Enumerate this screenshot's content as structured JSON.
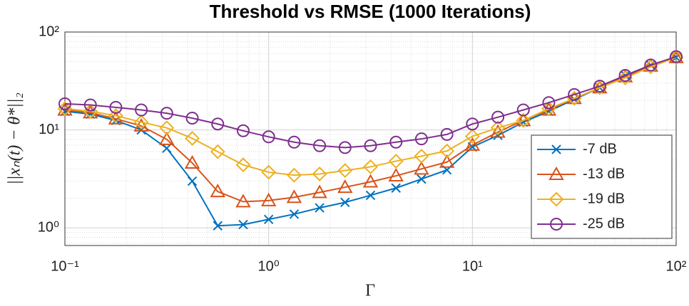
{
  "chart_data": {
    "type": "line",
    "title": "Threshold vs RMSE (1000 Iterations)",
    "xlabel": "Γ",
    "ylabel": "||xₙ(t) − θ*||₂",
    "x": [
      0.1,
      0.1334,
      0.1778,
      0.2371,
      0.3162,
      0.4217,
      0.5623,
      0.7499,
      1,
      1.334,
      1.778,
      2.371,
      3.162,
      4.217,
      5.623,
      7.499,
      10,
      13.34,
      17.78,
      23.71,
      31.62,
      42.17,
      56.23,
      74.99,
      100
    ],
    "series": [
      {
        "name": "-7 dB",
        "color": "#0072bd",
        "marker": "x",
        "values": [
          15.5,
          14.5,
          12.5,
          10,
          6.5,
          3.0,
          1.05,
          1.08,
          1.22,
          1.38,
          1.6,
          1.82,
          2.15,
          2.55,
          3.15,
          3.9,
          6.7,
          8.8,
          12,
          15.5,
          20.5,
          27,
          36,
          46,
          55
        ]
      },
      {
        "name": "-13 dB",
        "color": "#d95319",
        "marker": "triangle",
        "values": [
          16,
          15,
          13,
          11,
          8,
          4.6,
          2.35,
          1.85,
          1.9,
          2.05,
          2.3,
          2.6,
          2.95,
          3.4,
          4.0,
          4.7,
          7.0,
          9.5,
          12.5,
          16,
          21,
          27,
          35,
          45,
          55
        ]
      },
      {
        "name": "-19 dB",
        "color": "#edb120",
        "marker": "diamond",
        "values": [
          16.5,
          15.5,
          14,
          12,
          10.5,
          8.2,
          6,
          4.4,
          3.7,
          3.45,
          3.55,
          3.85,
          4.2,
          4.8,
          5.4,
          6.1,
          8.6,
          10.5,
          12.5,
          16.5,
          21,
          27,
          34,
          44,
          55
        ]
      },
      {
        "name": "-25 dB",
        "color": "#7e2f8e",
        "marker": "circle",
        "values": [
          18.5,
          18,
          17,
          16,
          14.8,
          13.2,
          11.5,
          9.8,
          8.5,
          7.5,
          6.9,
          6.6,
          6.9,
          7.5,
          8.1,
          9,
          11.5,
          13.5,
          16,
          19,
          23,
          28,
          36,
          46,
          56
        ]
      }
    ],
    "xlim": [
      0.1,
      100
    ],
    "ylim": [
      0.66,
      100
    ],
    "xlog": true,
    "ylog": true,
    "xticks": [
      {
        "value": 0.1,
        "label": "10⁻¹"
      },
      {
        "value": 1,
        "label": "10⁰"
      },
      {
        "value": 10,
        "label": "10¹"
      },
      {
        "value": 100,
        "label": "10²"
      }
    ],
    "yticks": [
      {
        "value": 1,
        "label": "10⁰"
      },
      {
        "value": 10,
        "label": "10¹"
      },
      {
        "value": 100,
        "label": "10²"
      }
    ],
    "grid": true,
    "minor_grid": true,
    "legend": "lower-right"
  }
}
